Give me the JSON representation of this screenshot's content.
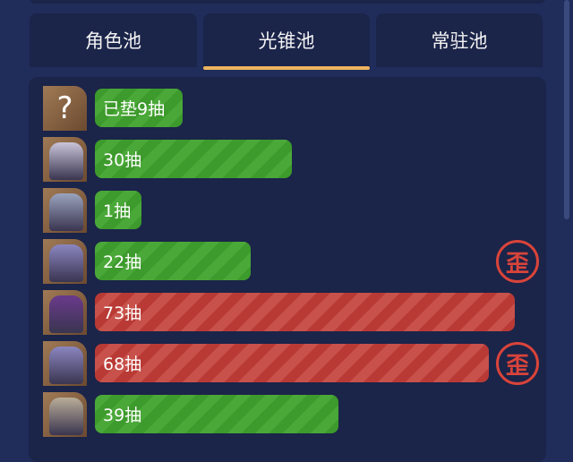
{
  "tabs": [
    {
      "label": "角色池",
      "active": false
    },
    {
      "label": "光锥池",
      "active": true
    },
    {
      "label": "常驻池",
      "active": false
    }
  ],
  "colors": {
    "accent": "#eeb55f",
    "green": "#3d9a2c",
    "red": "#b93a35",
    "badge": "#d9443a"
  },
  "records": [
    {
      "avatar": "question-mark",
      "label": "已垫9抽",
      "pulls": 9,
      "status": "green",
      "badge": null
    },
    {
      "avatar": "character",
      "label": "30抽",
      "pulls": 30,
      "status": "green",
      "badge": null
    },
    {
      "avatar": "character",
      "label": "1抽",
      "pulls": 1,
      "status": "green",
      "badge": null
    },
    {
      "avatar": "character",
      "label": "22抽",
      "pulls": 22,
      "status": "green",
      "badge": "歪"
    },
    {
      "avatar": "character",
      "label": "73抽",
      "pulls": 73,
      "status": "red",
      "badge": null
    },
    {
      "avatar": "character",
      "label": "68抽",
      "pulls": 68,
      "status": "red",
      "badge": "歪"
    },
    {
      "avatar": "character",
      "label": "39抽",
      "pulls": 39,
      "status": "green",
      "badge": null
    }
  ]
}
